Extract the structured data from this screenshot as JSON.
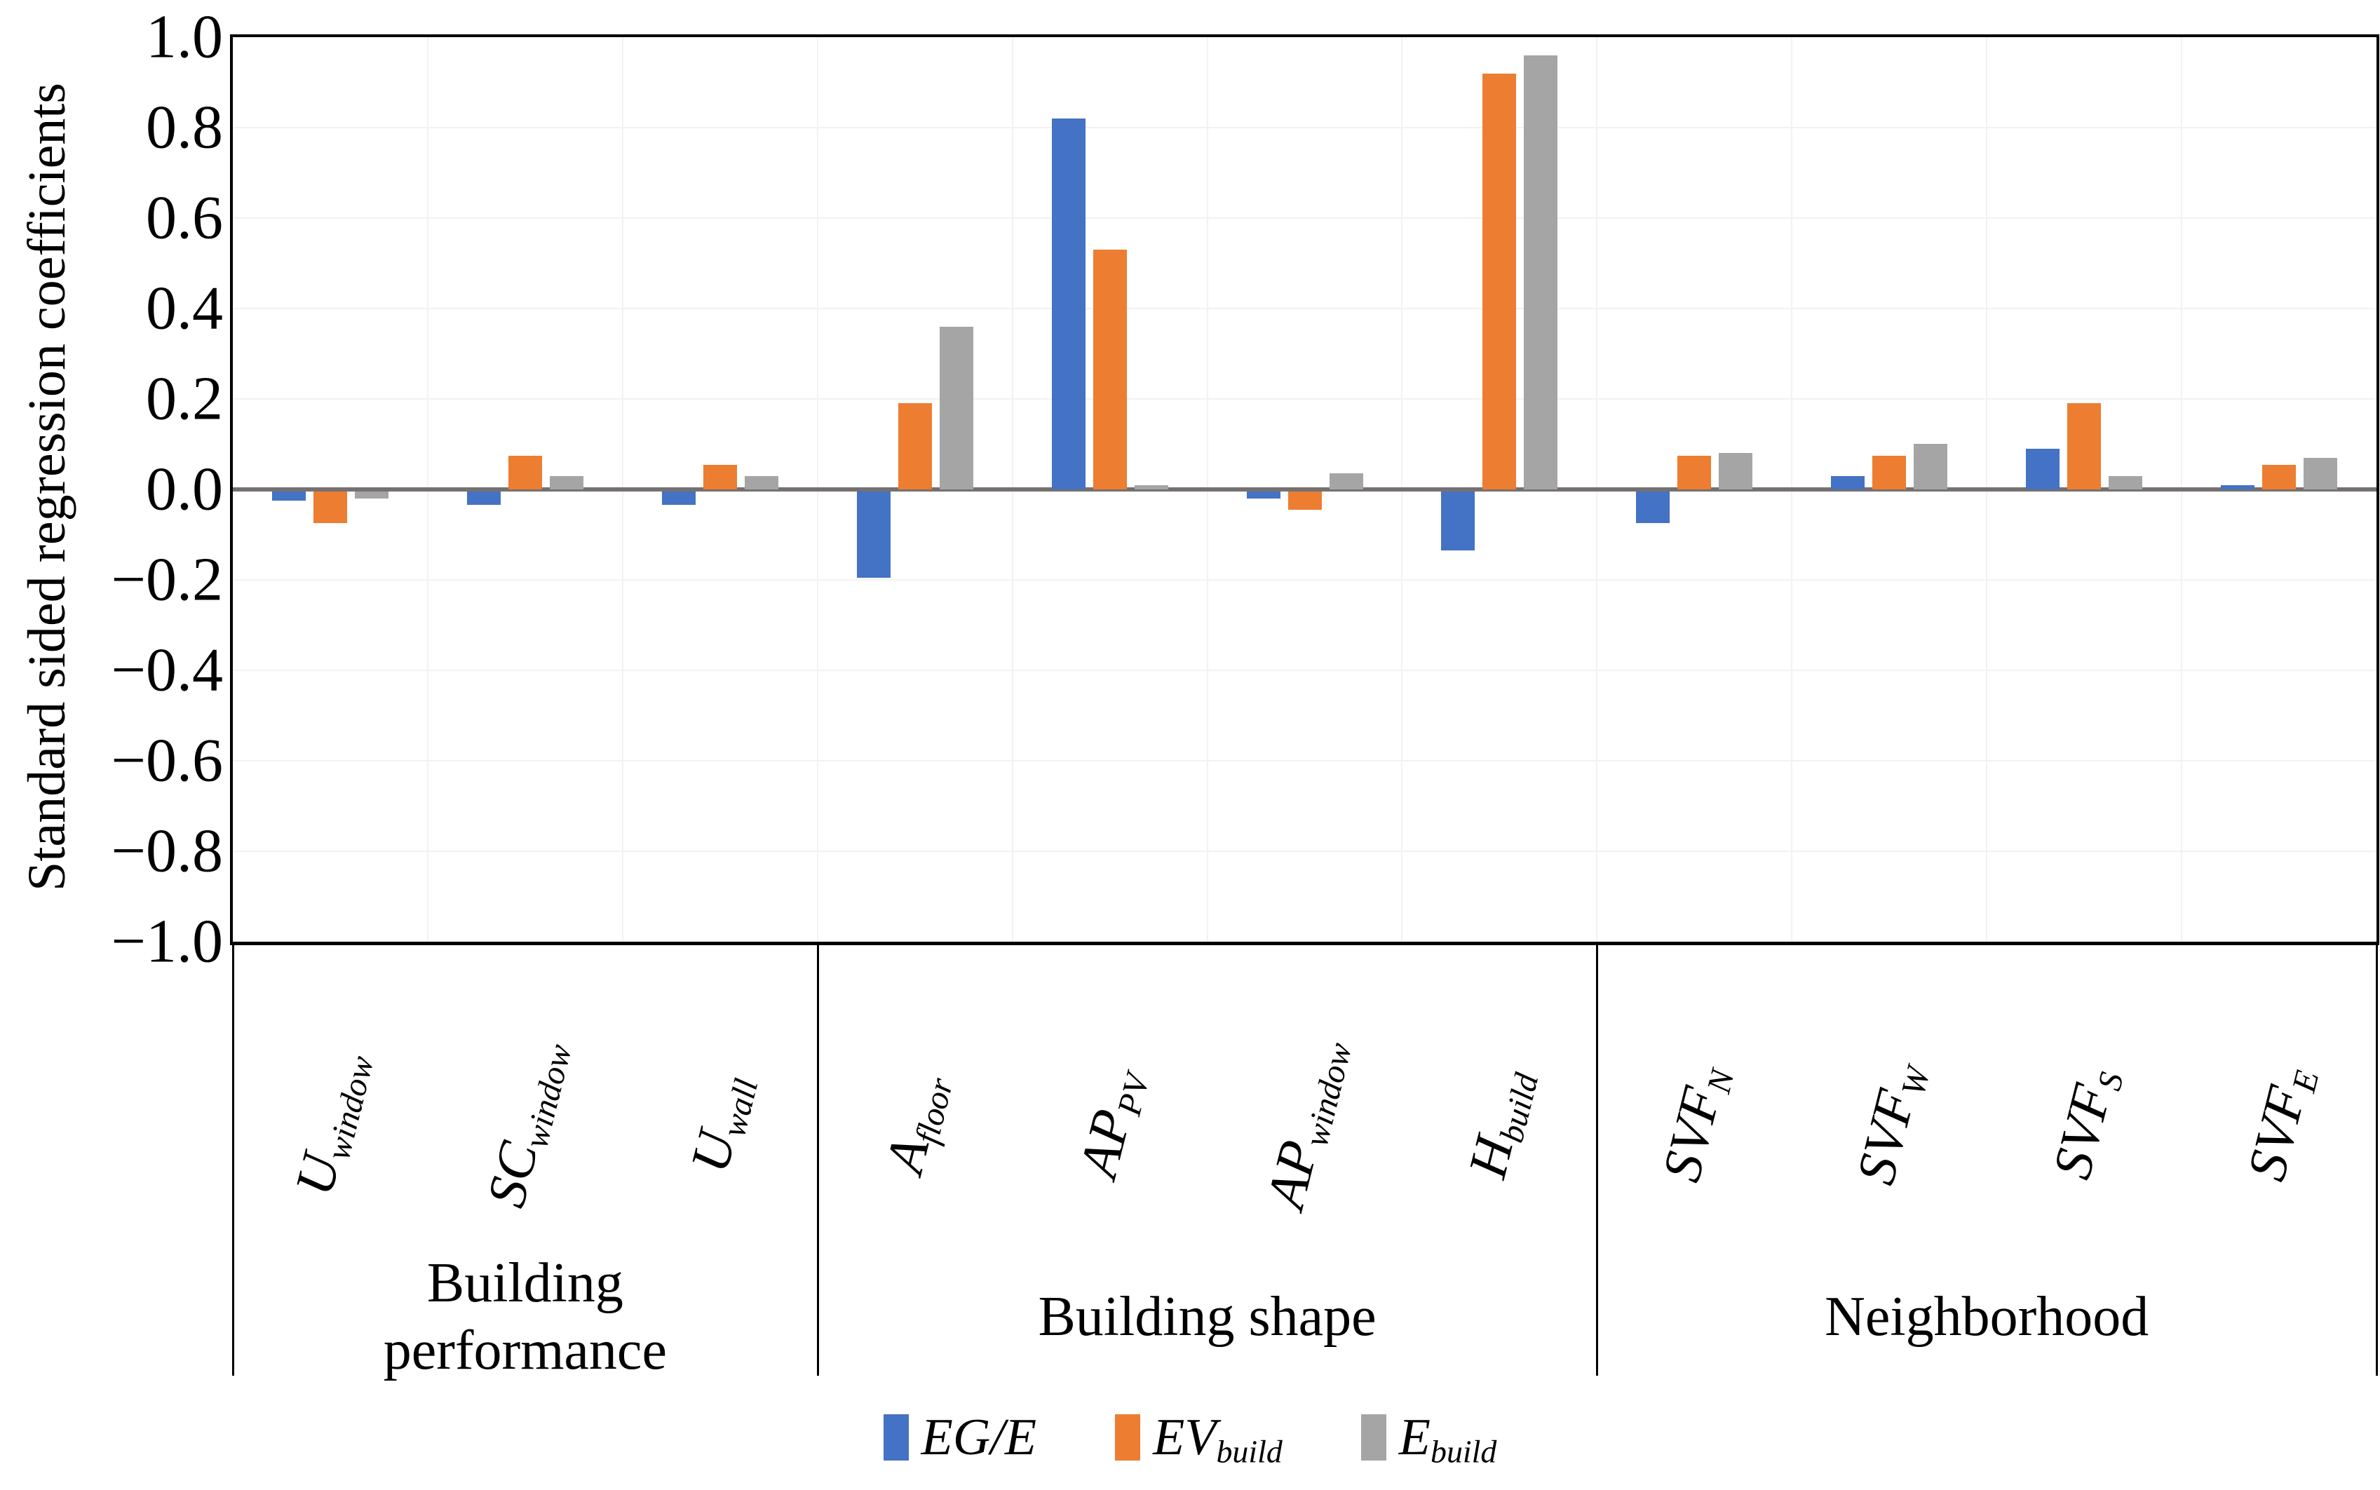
{
  "chart_data": {
    "type": "bar",
    "title": "",
    "ylabel": "Standard sided regression coefficients",
    "xlabel": "",
    "ylim": [
      -1.0,
      1.0
    ],
    "ytick_step": 0.2,
    "y_ticks": [
      "1.0",
      "0.8",
      "0.6",
      "0.4",
      "0.2",
      "0.0",
      "−0.2",
      "−0.4",
      "−0.6",
      "−0.8",
      "−1.0"
    ],
    "grid": true,
    "legend_position": "bottom-center",
    "gridline_color": "#F2F2F2",
    "zero_line_color": "#767171",
    "axis_color": "#000000",
    "categories": [
      {
        "base": "U",
        "sub": "window"
      },
      {
        "base": "SC",
        "sub": "window"
      },
      {
        "base": "U",
        "sub": "wall"
      },
      {
        "base": "A",
        "sub": "floor"
      },
      {
        "base": "AP",
        "sub": "PV"
      },
      {
        "base": "AP",
        "sub": "window"
      },
      {
        "base": "H",
        "sub": "build"
      },
      {
        "base": "SVF",
        "sub": "N"
      },
      {
        "base": "SVF",
        "sub": "W"
      },
      {
        "base": "SVF",
        "sub": "S"
      },
      {
        "base": "SVF",
        "sub": "E"
      }
    ],
    "category_groups": [
      {
        "label": "Building performance",
        "lines": [
          "Building",
          "performance"
        ],
        "span": [
          0,
          3
        ]
      },
      {
        "label": "Building shape",
        "lines": [
          "Building shape"
        ],
        "span": [
          3,
          7
        ]
      },
      {
        "label": "Neighborhood",
        "lines": [
          "Neighborhood"
        ],
        "span": [
          7,
          11
        ]
      }
    ],
    "series": [
      {
        "name": "EG/E",
        "label_base": "EG/E",
        "label_sub": "",
        "color": "#4472C4",
        "values": [
          -0.02,
          -0.03,
          -0.03,
          -0.19,
          0.82,
          -0.015,
          -0.13,
          -0.07,
          0.03,
          0.09,
          0.01
        ]
      },
      {
        "name": "EV_build",
        "label_base": "EV",
        "label_sub": "build",
        "color": "#ED7D31",
        "values": [
          -0.07,
          0.075,
          0.055,
          0.19,
          0.53,
          -0.04,
          0.92,
          0.075,
          0.075,
          0.19,
          0.055
        ]
      },
      {
        "name": "E_build",
        "label_base": "E",
        "label_sub": "build",
        "color": "#A5A5A5",
        "values": [
          -0.015,
          0.03,
          0.03,
          0.36,
          0.01,
          0.035,
          0.96,
          0.08,
          0.1,
          0.03,
          0.07
        ]
      }
    ]
  }
}
